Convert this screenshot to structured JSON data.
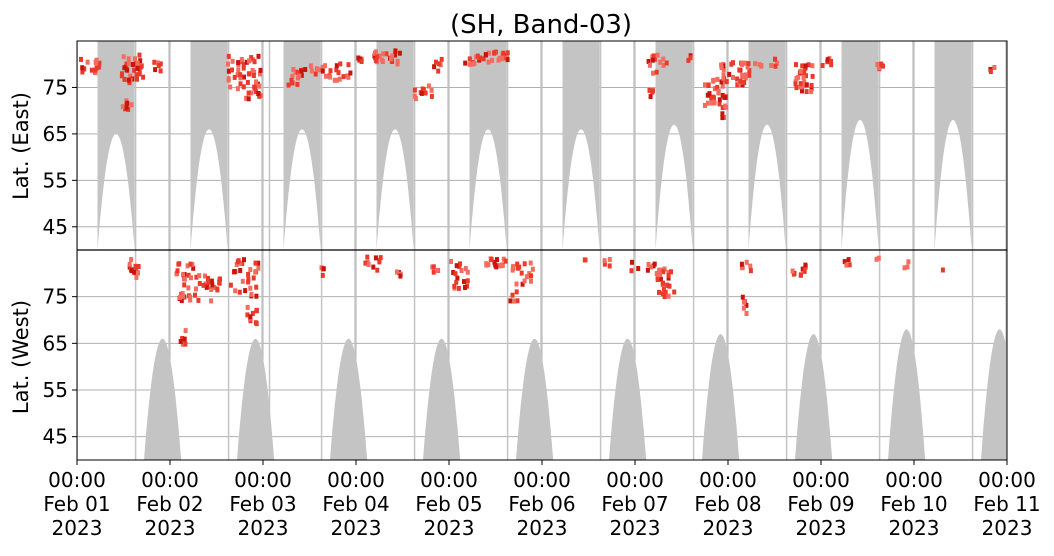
{
  "chart_data": {
    "type": "heatmap",
    "title": "(SH, Band-03)",
    "ylabel_top": "Lat. (East)",
    "ylabel_bottom": "Lat. (West)",
    "x_tick_labels": [
      "00:00\nFeb 01\n2023",
      "00:00\nFeb 02\n2023",
      "00:00\nFeb 03\n2023",
      "00:00\nFeb 04\n2023",
      "00:00\nFeb 05\n2023",
      "00:00\nFeb 06\n2023",
      "00:00\nFeb 07\n2023",
      "00:00\nFeb 08\n2023",
      "00:00\nFeb 09\n2023",
      "00:00\nFeb 10\n2023",
      "00:00\nFeb 11\n2023"
    ],
    "xlim_days": [
      0,
      10
    ],
    "x_origin": "2023-02-01 00:00",
    "y_ticks_east": [
      45,
      55,
      65,
      75
    ],
    "y_ticks_west": [
      75,
      65,
      55,
      45
    ],
    "ylim": [
      40,
      85
    ],
    "grid": true,
    "colors": {
      "shade": "#c4c4c4",
      "event_light": "#f46c5f",
      "event_mid": "#ea3a2c",
      "event_dark": "#c8140c",
      "grid": "#b0b0b0",
      "divider": "#000000"
    },
    "shade_lobes_east": [
      {
        "c": 0.42,
        "w": 0.2,
        "lat": 65
      },
      {
        "c": 1.42,
        "w": 0.2,
        "lat": 66
      },
      {
        "c": 2.42,
        "w": 0.2,
        "lat": 66
      },
      {
        "c": 3.42,
        "w": 0.2,
        "lat": 66
      },
      {
        "c": 4.42,
        "w": 0.2,
        "lat": 66
      },
      {
        "c": 5.42,
        "w": 0.2,
        "lat": 66
      },
      {
        "c": 6.42,
        "w": 0.2,
        "lat": 67
      },
      {
        "c": 7.42,
        "w": 0.2,
        "lat": 67
      },
      {
        "c": 8.42,
        "w": 0.2,
        "lat": 68
      },
      {
        "c": 9.42,
        "w": 0.2,
        "lat": 68
      }
    ],
    "shade_lobes_west": [
      {
        "c": 0.92,
        "w": 0.2,
        "lat": 66
      },
      {
        "c": 1.92,
        "w": 0.2,
        "lat": 66
      },
      {
        "c": 2.92,
        "w": 0.2,
        "lat": 66
      },
      {
        "c": 3.92,
        "w": 0.2,
        "lat": 66
      },
      {
        "c": 4.92,
        "w": 0.2,
        "lat": 66
      },
      {
        "c": 5.92,
        "w": 0.2,
        "lat": 66
      },
      {
        "c": 6.92,
        "w": 0.2,
        "lat": 67
      },
      {
        "c": 7.92,
        "w": 0.2,
        "lat": 67
      },
      {
        "c": 8.92,
        "w": 0.2,
        "lat": 68
      },
      {
        "c": 9.92,
        "w": 0.2,
        "lat": 68
      }
    ],
    "shade_vlines_days": [
      0.0,
      0.63,
      0.99,
      1.63,
      1.99,
      2.07,
      2.63,
      2.99,
      3.63,
      3.99,
      4.63,
      4.99,
      5.63,
      5.99,
      6.63,
      6.99,
      7.63,
      7.99,
      8.63,
      8.99,
      9.63,
      9.99
    ],
    "event_blobs": [
      {
        "hemi": "east",
        "x": 0.1,
        "lat": 79.5,
        "dx": 0.12,
        "dlat": 2.0,
        "n": 16
      },
      {
        "hemi": "east",
        "x": 0.52,
        "lat": 71.5,
        "dx": 0.05,
        "dlat": 1.5,
        "n": 8
      },
      {
        "hemi": "east",
        "x": 0.58,
        "lat": 79.0,
        "dx": 0.12,
        "dlat": 3.0,
        "n": 34
      },
      {
        "hemi": "west",
        "x": 0.58,
        "lat": 81.0,
        "dx": 0.07,
        "dlat": 2.0,
        "n": 14
      },
      {
        "hemi": "east",
        "x": 0.83,
        "lat": 79.5,
        "dx": 0.05,
        "dlat": 1.0,
        "n": 6
      },
      {
        "hemi": "west",
        "x": 1.12,
        "lat": 81.0,
        "dx": 0.12,
        "dlat": 1.5,
        "n": 12
      },
      {
        "hemi": "west",
        "x": 1.3,
        "lat": 77.0,
        "dx": 0.22,
        "dlat": 3.0,
        "n": 40
      },
      {
        "hemi": "west",
        "x": 1.12,
        "lat": 66.5,
        "dx": 0.03,
        "dlat": 2.0,
        "n": 6
      },
      {
        "hemi": "east",
        "x": 1.78,
        "lat": 78.0,
        "dx": 0.18,
        "dlat": 4.0,
        "n": 45
      },
      {
        "hemi": "west",
        "x": 1.78,
        "lat": 79.0,
        "dx": 0.15,
        "dlat": 4.0,
        "n": 30
      },
      {
        "hemi": "west",
        "x": 1.86,
        "lat": 71.0,
        "dx": 0.06,
        "dlat": 2.0,
        "n": 10
      },
      {
        "hemi": "east",
        "x": 1.88,
        "lat": 73.5,
        "dx": 0.1,
        "dlat": 1.0,
        "n": 8
      },
      {
        "hemi": "east",
        "x": 2.35,
        "lat": 77.5,
        "dx": 0.1,
        "dlat": 2.0,
        "n": 14
      },
      {
        "hemi": "east",
        "x": 2.6,
        "lat": 78.5,
        "dx": 0.12,
        "dlat": 1.5,
        "n": 12
      },
      {
        "hemi": "west",
        "x": 2.62,
        "lat": 80.5,
        "dx": 0.04,
        "dlat": 1.0,
        "n": 4
      },
      {
        "hemi": "east",
        "x": 2.85,
        "lat": 78.5,
        "dx": 0.1,
        "dlat": 2.0,
        "n": 12
      },
      {
        "hemi": "east",
        "x": 3.05,
        "lat": 81.0,
        "dx": 0.05,
        "dlat": 1.0,
        "n": 5
      },
      {
        "hemi": "east",
        "x": 3.32,
        "lat": 81.5,
        "dx": 0.15,
        "dlat": 1.5,
        "n": 22
      },
      {
        "hemi": "west",
        "x": 3.15,
        "lat": 82.0,
        "dx": 0.1,
        "dlat": 1.5,
        "n": 10
      },
      {
        "hemi": "west",
        "x": 3.43,
        "lat": 80.0,
        "dx": 0.05,
        "dlat": 1.0,
        "n": 4
      },
      {
        "hemi": "east",
        "x": 3.7,
        "lat": 74.0,
        "dx": 0.1,
        "dlat": 1.5,
        "n": 12
      },
      {
        "hemi": "east",
        "x": 3.85,
        "lat": 80.0,
        "dx": 0.06,
        "dlat": 1.5,
        "n": 6
      },
      {
        "hemi": "west",
        "x": 3.85,
        "lat": 80.5,
        "dx": 0.06,
        "dlat": 1.0,
        "n": 5
      },
      {
        "hemi": "east",
        "x": 4.2,
        "lat": 80.5,
        "dx": 0.06,
        "dlat": 1.0,
        "n": 6
      },
      {
        "hemi": "east",
        "x": 4.45,
        "lat": 81.5,
        "dx": 0.18,
        "dlat": 1.2,
        "n": 26
      },
      {
        "hemi": "west",
        "x": 4.48,
        "lat": 82.0,
        "dx": 0.12,
        "dlat": 1.2,
        "n": 16
      },
      {
        "hemi": "west",
        "x": 4.12,
        "lat": 79.5,
        "dx": 0.1,
        "dlat": 3.0,
        "n": 14
      },
      {
        "hemi": "west",
        "x": 4.05,
        "lat": 82.5,
        "dx": 0.05,
        "dlat": 1.0,
        "n": 4
      },
      {
        "hemi": "west",
        "x": 4.78,
        "lat": 80.0,
        "dx": 0.12,
        "dlat": 2.5,
        "n": 18
      },
      {
        "hemi": "west",
        "x": 4.67,
        "lat": 75.5,
        "dx": 0.05,
        "dlat": 1.5,
        "n": 5
      },
      {
        "hemi": "west",
        "x": 5.45,
        "lat": 83.0,
        "dx": 0.02,
        "dlat": 0.5,
        "n": 2
      },
      {
        "hemi": "west",
        "x": 5.68,
        "lat": 82.0,
        "dx": 0.04,
        "dlat": 1.0,
        "n": 4
      },
      {
        "hemi": "west",
        "x": 6.05,
        "lat": 81.5,
        "dx": 0.15,
        "dlat": 1.0,
        "n": 8
      },
      {
        "hemi": "west",
        "x": 6.3,
        "lat": 78.0,
        "dx": 0.1,
        "dlat": 3.0,
        "n": 26
      },
      {
        "hemi": "east",
        "x": 6.15,
        "lat": 73.5,
        "dx": 0.04,
        "dlat": 1.5,
        "n": 4
      },
      {
        "hemi": "east",
        "x": 6.22,
        "lat": 80.0,
        "dx": 0.1,
        "dlat": 2.0,
        "n": 14
      },
      {
        "hemi": "east",
        "x": 6.55,
        "lat": 81.0,
        "dx": 0.04,
        "dlat": 1.0,
        "n": 3
      },
      {
        "hemi": "east",
        "x": 6.85,
        "lat": 74.0,
        "dx": 0.12,
        "dlat": 3.0,
        "n": 28
      },
      {
        "hemi": "east",
        "x": 7.05,
        "lat": 78.0,
        "dx": 0.16,
        "dlat": 2.5,
        "n": 36
      },
      {
        "hemi": "east",
        "x": 6.95,
        "lat": 70.0,
        "dx": 0.04,
        "dlat": 1.5,
        "n": 6
      },
      {
        "hemi": "west",
        "x": 7.15,
        "lat": 81.5,
        "dx": 0.1,
        "dlat": 1.0,
        "n": 6
      },
      {
        "hemi": "west",
        "x": 7.15,
        "lat": 73.0,
        "dx": 0.03,
        "dlat": 2.0,
        "n": 6
      },
      {
        "hemi": "east",
        "x": 7.3,
        "lat": 79.5,
        "dx": 0.04,
        "dlat": 1.0,
        "n": 4
      },
      {
        "hemi": "east",
        "x": 7.47,
        "lat": 80.5,
        "dx": 0.04,
        "dlat": 1.0,
        "n": 4
      },
      {
        "hemi": "east",
        "x": 7.8,
        "lat": 77.0,
        "dx": 0.1,
        "dlat": 3.0,
        "n": 30
      },
      {
        "hemi": "east",
        "x": 8.05,
        "lat": 80.5,
        "dx": 0.06,
        "dlat": 1.0,
        "n": 6
      },
      {
        "hemi": "west",
        "x": 7.75,
        "lat": 80.5,
        "dx": 0.08,
        "dlat": 1.5,
        "n": 10
      },
      {
        "hemi": "west",
        "x": 8.25,
        "lat": 82.5,
        "dx": 0.05,
        "dlat": 0.8,
        "n": 4
      },
      {
        "hemi": "east",
        "x": 8.6,
        "lat": 80.0,
        "dx": 0.06,
        "dlat": 1.0,
        "n": 6
      },
      {
        "hemi": "west",
        "x": 8.58,
        "lat": 83.0,
        "dx": 0.03,
        "dlat": 0.5,
        "n": 2
      },
      {
        "hemi": "west",
        "x": 8.9,
        "lat": 81.5,
        "dx": 0.03,
        "dlat": 1.0,
        "n": 3
      },
      {
        "hemi": "west",
        "x": 9.27,
        "lat": 81.0,
        "dx": 0.02,
        "dlat": 0.5,
        "n": 1
      },
      {
        "hemi": "east",
        "x": 9.82,
        "lat": 79.0,
        "dx": 0.03,
        "dlat": 1.0,
        "n": 3
      }
    ]
  }
}
